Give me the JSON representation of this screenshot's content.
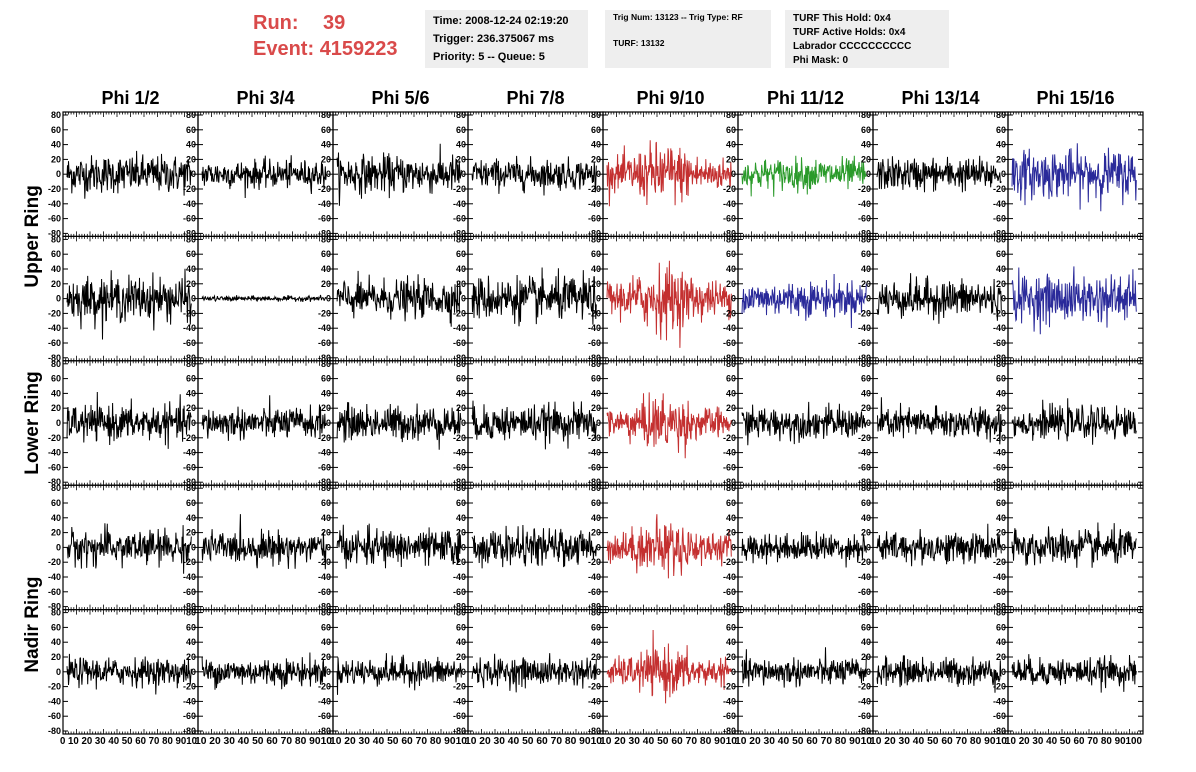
{
  "run": {
    "run_label": "Run:",
    "run_value": "39",
    "event_label": "Event:",
    "event_value": "4159223"
  },
  "time_box": {
    "time": "Time: 2008-12-24 02:19:20",
    "trigger": "Trigger: 236.375067 ms",
    "priority": "Priority: 5 -- Queue: 5"
  },
  "trig_box": {
    "trig": "Trig Num: 13123 -- Trig Type: RF",
    "turf": "TURF: 13132"
  },
  "turf_box": {
    "hold": "TURF This Hold: 0x4",
    "active": "TURF Active Holds: 0x4",
    "labrador": "Labrador CCCCCCCCCC",
    "phimask": "Phi Mask: 0"
  },
  "colors": {
    "red": "#c43030",
    "green": "#2a9a2a",
    "blue": "#2a2a9a",
    "black": "#000000"
  },
  "chart_data": {
    "type": "line",
    "title": "",
    "column_labels": [
      "Phi 1/2",
      "Phi 3/4",
      "Phi 5/6",
      "Phi 7/8",
      "Phi 9/10",
      "Phi 11/12",
      "Phi 13/14",
      "Phi 15/16"
    ],
    "ring_labels": [
      "Upper Ring",
      "Lower Ring",
      "Nadir Ring"
    ],
    "xlim": [
      0,
      100
    ],
    "ylim": [
      -80,
      80
    ],
    "y_ticks": [
      -80,
      -60,
      -40,
      -20,
      0,
      20,
      40,
      60,
      80
    ],
    "x_ticks": [
      0,
      10,
      20,
      30,
      40,
      50,
      60,
      70,
      80,
      90
    ],
    "x_tick_label_runs": [
      "0 10 20 30 40 50 60 70 80 9010",
      "10 20 30 40 50 60 70 80 9010",
      "10 20 30 40 50 60 70 80 9010",
      "10 20 30 40 50 60 70 80 9010",
      "10 20 30 40 50 60 70 80 9010",
      "10 20 30 40 50 60 70 80 9010",
      "10 20 30 40 50 60 70 80 9010",
      "10 20 30 40 50 60 70 80 90100"
    ],
    "n_samples": 260,
    "waveform_amplitude": [
      [
        30,
        22,
        30,
        24,
        45,
        25,
        26,
        38
      ],
      [
        35,
        4,
        30,
        35,
        48,
        28,
        30,
        38
      ],
      [
        28,
        25,
        28,
        28,
        40,
        25,
        25,
        25
      ],
      [
        28,
        25,
        28,
        28,
        40,
        22,
        25,
        28
      ],
      [
        22,
        22,
        22,
        22,
        35,
        22,
        22,
        22
      ]
    ],
    "waveform_color": [
      [
        "black",
        "black",
        "black",
        "black",
        "red",
        "green",
        "black",
        "blue"
      ],
      [
        "black",
        "black",
        "black",
        "black",
        "red",
        "blue",
        "black",
        "blue"
      ],
      [
        "black",
        "black",
        "black",
        "black",
        "red",
        "black",
        "black",
        "black"
      ],
      [
        "black",
        "black",
        "black",
        "black",
        "red",
        "black",
        "black",
        "black"
      ],
      [
        "black",
        "black",
        "black",
        "black",
        "red",
        "black",
        "black",
        "black"
      ]
    ]
  }
}
